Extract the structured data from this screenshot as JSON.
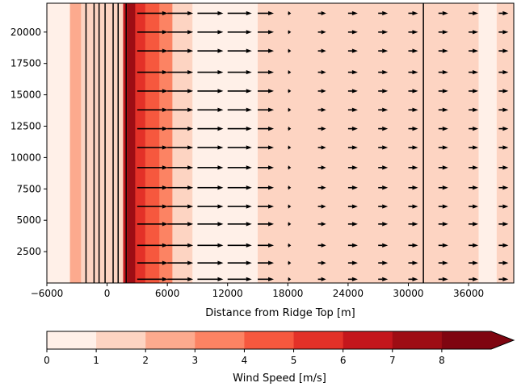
{
  "chart_data": {
    "type": "heatmap",
    "overlays": [
      "quiver",
      "contour-lines"
    ],
    "xlabel": "Distance from Ridge Top [m]",
    "ylabel": "",
    "xlim": [
      -6000,
      40500
    ],
    "ylim": [
      0,
      22300
    ],
    "x_ticks": [
      -6000,
      0,
      6000,
      12000,
      18000,
      24000,
      30000,
      36000
    ],
    "x_tick_labels": [
      "−6000",
      "0",
      "6000",
      "12000",
      "18000",
      "24000",
      "30000",
      "36000"
    ],
    "y_ticks": [
      2500,
      5000,
      7500,
      10000,
      12500,
      15000,
      17500,
      20000
    ],
    "y_tick_labels": [
      "2500",
      "5000",
      "7500",
      "10000",
      "12500",
      "15000",
      "17500",
      "20000"
    ],
    "grid": false,
    "wind_speed_bands": [
      {
        "x0": -6000,
        "x1": -3700,
        "level": 0
      },
      {
        "x0": -3700,
        "x1": -2600,
        "level": 2
      },
      {
        "x0": -2600,
        "x1": 1600,
        "level": 1
      },
      {
        "x0": 1600,
        "x1": 2000,
        "level": 6
      },
      {
        "x0": 2000,
        "x1": 2800,
        "level": 7
      },
      {
        "x0": 2800,
        "x1": 3800,
        "level": 5
      },
      {
        "x0": 3800,
        "x1": 5200,
        "level": 4
      },
      {
        "x0": 5200,
        "x1": 6500,
        "level": 3
      },
      {
        "x0": 6500,
        "x1": 8500,
        "level": 1
      },
      {
        "x0": 8500,
        "x1": 15000,
        "level": 0
      },
      {
        "x0": 15000,
        "x1": 37000,
        "level": 1
      },
      {
        "x0": 37000,
        "x1": 38800,
        "level": 0
      },
      {
        "x0": 38800,
        "x1": 40500,
        "level": 1
      }
    ],
    "contour_lines_x": [
      -2100,
      -1300,
      -800,
      -200,
      600,
      1100,
      1900,
      31500
    ],
    "quiver": {
      "x": [
        3000,
        6000,
        9000,
        12000,
        15000,
        18000,
        21000,
        24000,
        27000,
        30000,
        33000,
        36000,
        39000
      ],
      "y": [
        300,
        1600,
        3000,
        4700,
        6100,
        7600,
        9200,
        10800,
        12300,
        13800,
        15300,
        16800,
        18500,
        20000,
        21500
      ],
      "u_mps": [
        3.8,
        3.2,
        3.2,
        3.0,
        2.0,
        0.4,
        1.0,
        1.2,
        1.2,
        1.2,
        1.2,
        1.2,
        1.2
      ],
      "v_mps": [
        0,
        0,
        0,
        0,
        0,
        0,
        0,
        0,
        0,
        0,
        0,
        0,
        0
      ]
    },
    "colorbar": {
      "label": "Wind Speed [m/s]",
      "levels": [
        0,
        1,
        2,
        3,
        4,
        5,
        6,
        7,
        8
      ],
      "tick_labels": [
        "0",
        "1",
        "2",
        "3",
        "4",
        "5",
        "6",
        "7",
        "8"
      ],
      "extend": "max",
      "cmap": "Reds",
      "colors": [
        "#fff0e8",
        "#fdd4c2",
        "#fcaa8e",
        "#fc8363",
        "#f6583e",
        "#e33128",
        "#c4161c",
        "#9e0d14",
        "#7f0510"
      ]
    }
  }
}
